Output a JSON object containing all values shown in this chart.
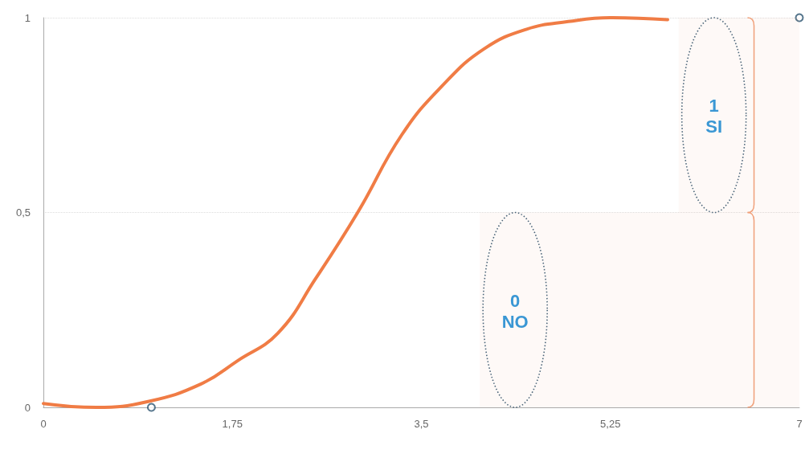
{
  "chart_data": {
    "type": "line",
    "series": [
      {
        "color": "#f07c45",
        "x": [
          0,
          0.49,
          0.97,
          1.46,
          1.8,
          2.17,
          2.52,
          2.91,
          3.32,
          3.71,
          4.08,
          4.47,
          4.86,
          5.25,
          5.78
        ],
        "values": [
          0.01,
          0,
          0.015,
          0.06,
          0.12,
          0.19,
          0.33,
          0.5,
          0.7,
          0.83,
          0.92,
          0.97,
          0.99,
          1,
          0.995
        ],
        "marker": "none"
      },
      {
        "type": "scatter",
        "color": "#2c5470",
        "x": [
          1,
          7
        ],
        "values": [
          0,
          1
        ],
        "marker": "circle"
      }
    ],
    "xlim": [
      0,
      7
    ],
    "xticks": [
      0,
      {
        "value": 1.75,
        "label": "1,75"
      },
      {
        "value": 3.5,
        "label": "3,5"
      },
      {
        "value": 5.25,
        "label": "5,25"
      },
      7
    ],
    "ylim": [
      0,
      1
    ],
    "yticks": [
      0,
      {
        "value": 0.5,
        "label": "0,5"
      },
      1
    ],
    "grid": "y",
    "bands": [
      {
        "axis": "y",
        "from": 0,
        "to": 0.5,
        "label": "0\nNO",
        "color": "#f0a07a"
      },
      {
        "axis": "y",
        "from": 0.5,
        "to": 1,
        "label": "1\nSI",
        "color": "#f0a07a"
      }
    ]
  }
}
